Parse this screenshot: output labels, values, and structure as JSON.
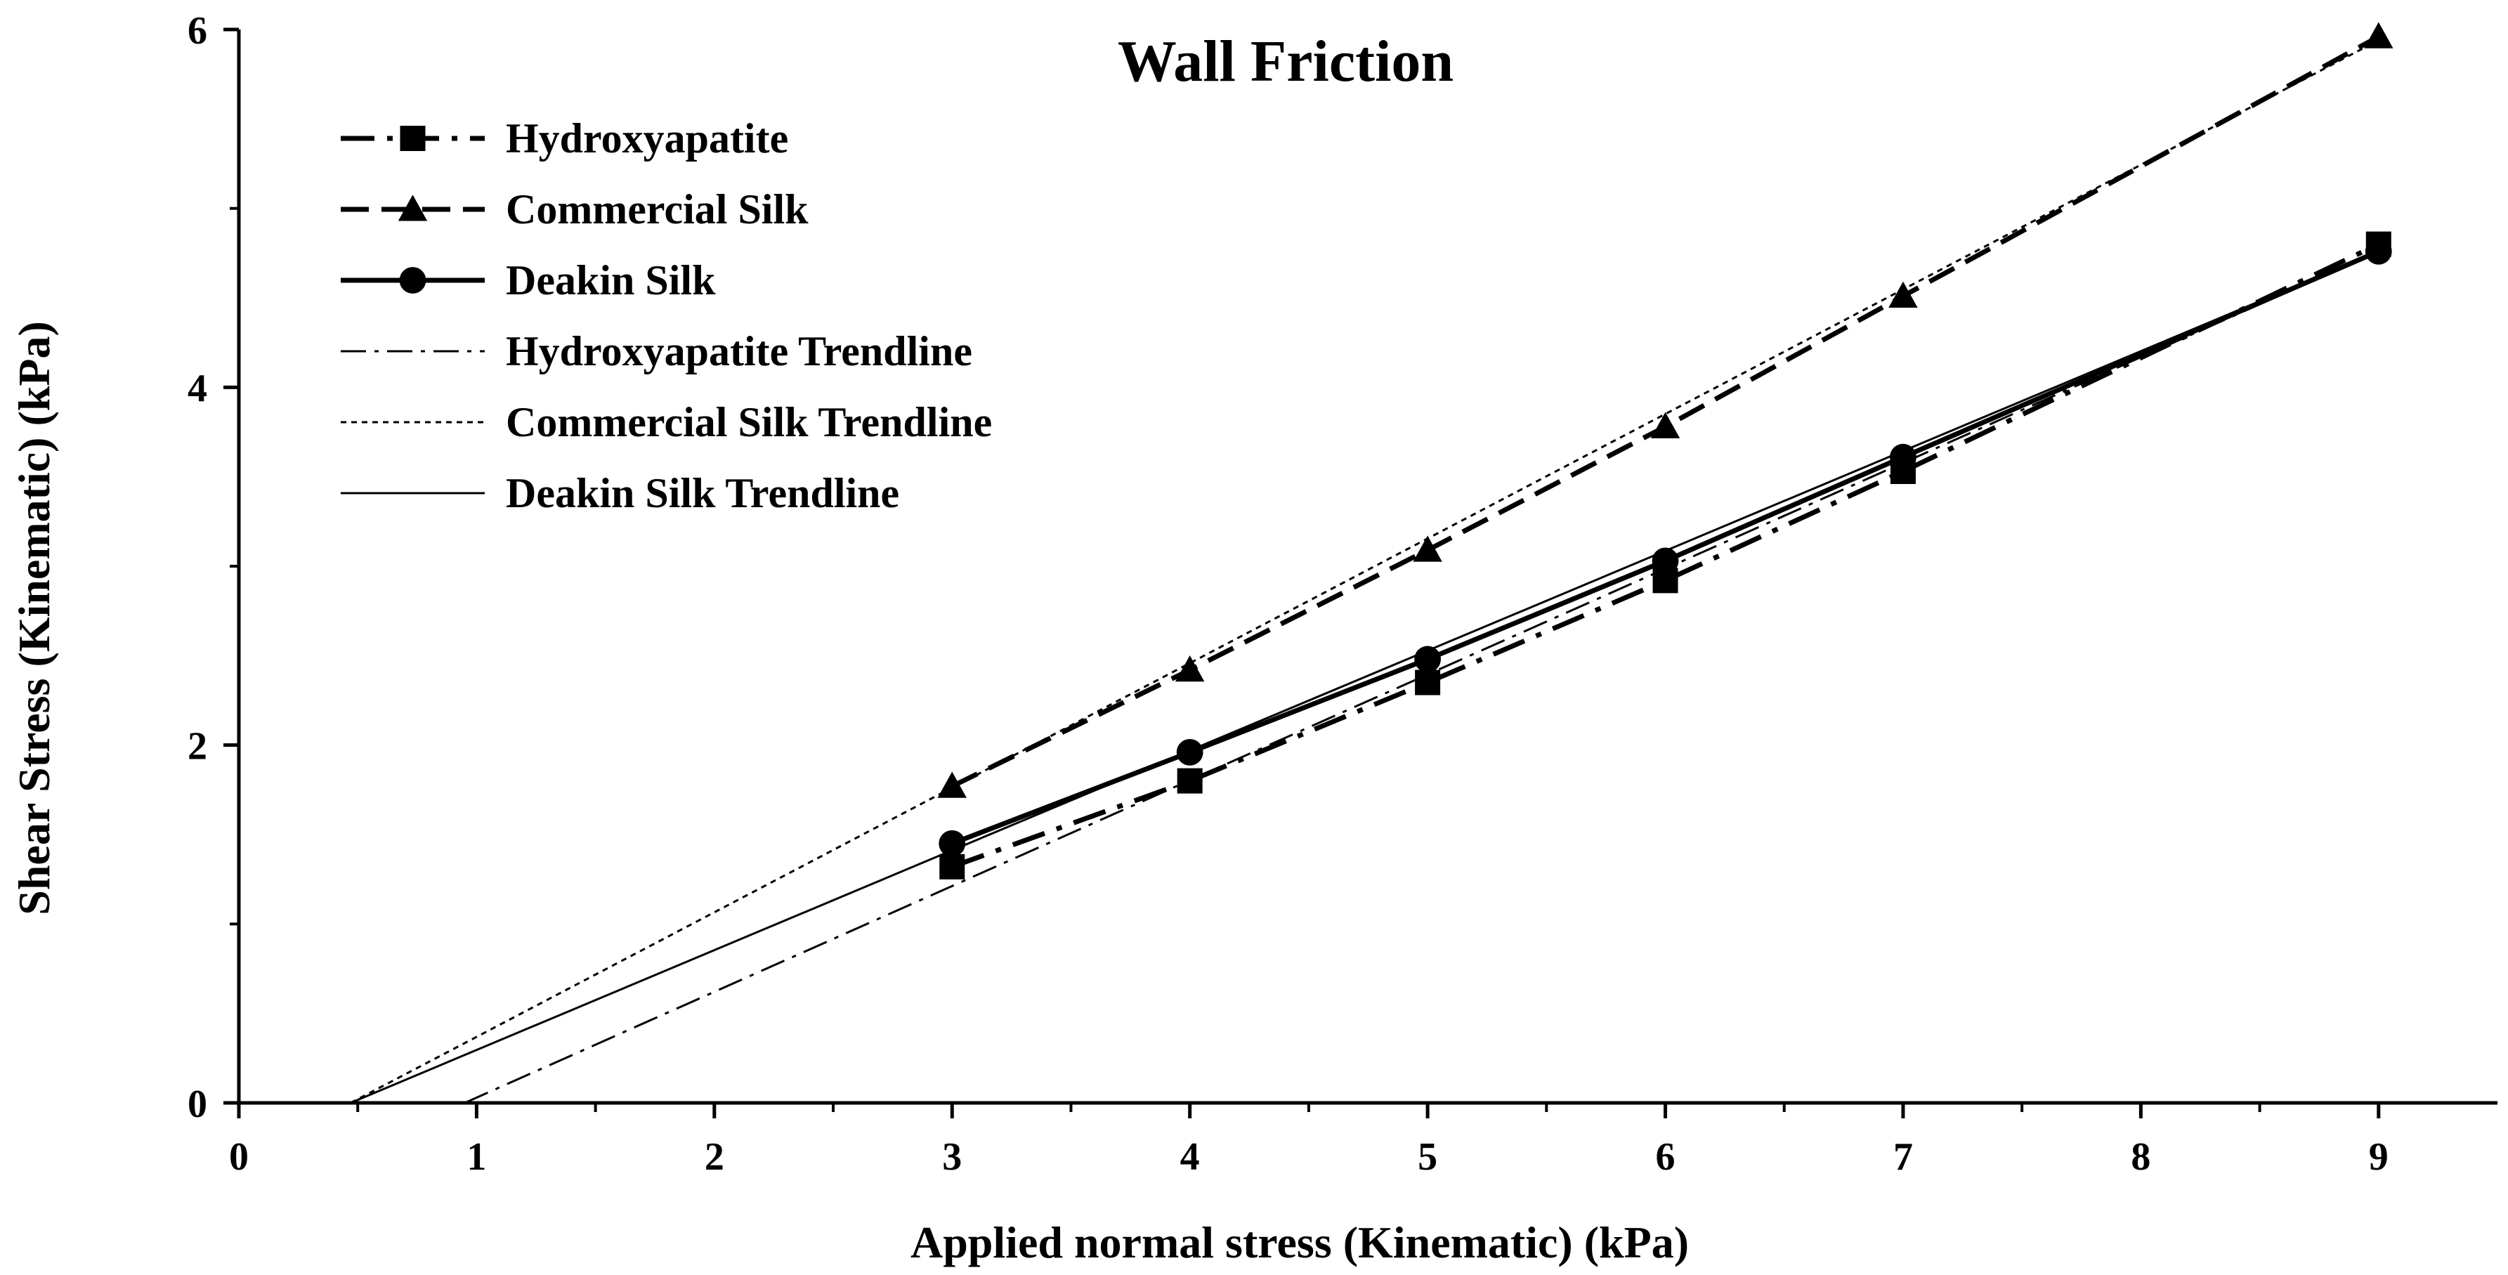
{
  "chart_data": {
    "type": "line",
    "title": "Wall Friction",
    "xlabel": "Applied normal stress (Kinematic) (kPa)",
    "ylabel": "Shear Stress (Kinematic) (kPa)",
    "xlim": [
      0,
      9.5
    ],
    "ylim": [
      0,
      6
    ],
    "xticks": [
      0,
      1,
      2,
      3,
      4,
      5,
      6,
      7,
      8,
      9
    ],
    "yticks": [
      0,
      2,
      4,
      6
    ],
    "grid": false,
    "legend_position": "top-left",
    "series": [
      {
        "name": "Hydroxyapatite",
        "marker": "square",
        "line": "dash-dot",
        "x": [
          3,
          4,
          5,
          6,
          7,
          9
        ],
        "y": [
          1.32,
          1.8,
          2.35,
          2.92,
          3.53,
          4.8
        ]
      },
      {
        "name": "Commercial Silk",
        "marker": "triangle",
        "line": "dashed",
        "x": [
          3,
          4,
          5,
          6,
          7,
          9
        ],
        "y": [
          1.77,
          2.42,
          3.09,
          3.78,
          4.51,
          5.96
        ]
      },
      {
        "name": "Deakin Silk",
        "marker": "circle",
        "line": "solid",
        "x": [
          3,
          4,
          5,
          6,
          7,
          9
        ],
        "y": [
          1.45,
          1.96,
          2.48,
          3.03,
          3.61,
          4.76
        ]
      }
    ],
    "trendlines": [
      {
        "name": "Hydroxyapatite Trendline",
        "line": "dash-dot-thin",
        "x": [
          0.95,
          9
        ],
        "y": [
          0,
          4.76
        ]
      },
      {
        "name": "Commercial Silk Trendline",
        "line": "dotted-thin",
        "x": [
          0.47,
          9
        ],
        "y": [
          0,
          5.94
        ]
      },
      {
        "name": "Deakin Silk Trendline",
        "line": "solid-thin",
        "x": [
          0.47,
          9
        ],
        "y": [
          0,
          4.76
        ]
      }
    ]
  }
}
